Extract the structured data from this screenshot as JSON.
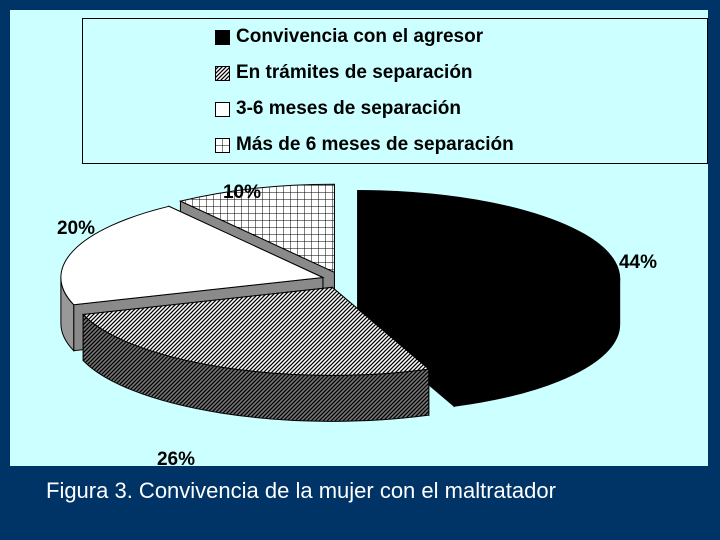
{
  "chart_data": {
    "type": "pie",
    "three_d": true,
    "exploded": true,
    "categories": [
      "Convivencia con el agresor",
      "En trámites de separación",
      "3-6 meses de separación",
      "Más de 6 meses de separación"
    ],
    "values": [
      44,
      26,
      20,
      10
    ],
    "data_labels": [
      "44%",
      "26%",
      "20%",
      "10%"
    ],
    "slice_fills": [
      "solid-black",
      "diagonal-hatch",
      "white",
      "grid"
    ],
    "legend_position": "top"
  },
  "caption": "Figura 3. Convivencia de la mujer con el maltratador",
  "colors": {
    "slide_background": "#003366",
    "plot_background": "#ccffff",
    "caption_text": "#ffffff"
  }
}
